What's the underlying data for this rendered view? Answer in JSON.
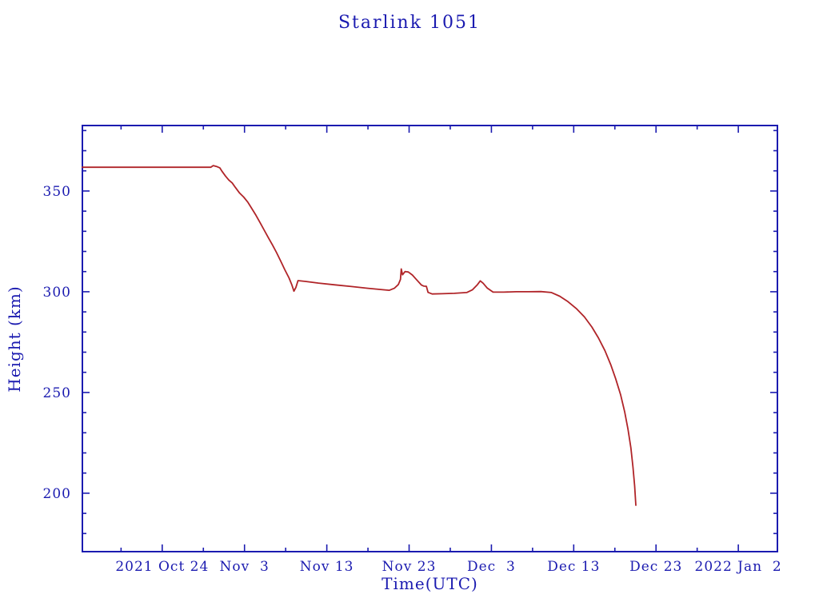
{
  "chart_data": {
    "type": "line",
    "title": "Starlink 1051",
    "xlabel": "Time(UTC)",
    "ylabel": "Height (km)",
    "x_unit": "days since 2021 Oct 24",
    "xlim": [
      -9.7,
      74.75
    ],
    "ylim": [
      171,
      382.5
    ],
    "grid": false,
    "legend": "none",
    "background_color": "#ffffff",
    "axis_color": "#1b1bb0",
    "line_color": "#b02428",
    "x_major_ticks": [
      {
        "day": 0,
        "label": "2021 Oct 24"
      },
      {
        "day": 10,
        "label": "Nov  3"
      },
      {
        "day": 20,
        "label": "Nov 13"
      },
      {
        "day": 30,
        "label": "Nov 23"
      },
      {
        "day": 40,
        "label": "Dec  3"
      },
      {
        "day": 50,
        "label": "Dec 13"
      },
      {
        "day": 60,
        "label": "Dec 23"
      },
      {
        "day": 70,
        "label": "2022 Jan  2"
      }
    ],
    "x_minor_tick_days": [
      -5,
      5,
      15,
      25,
      35,
      45,
      55,
      65
    ],
    "y_major_ticks": [
      {
        "value": 200,
        "label": "200"
      },
      {
        "value": 250,
        "label": "250"
      },
      {
        "value": 300,
        "label": "300"
      },
      {
        "value": 350,
        "label": "350"
      }
    ],
    "y_minor_ticks": [
      180,
      190,
      210,
      220,
      230,
      240,
      260,
      270,
      280,
      290,
      310,
      320,
      330,
      340,
      360,
      370,
      380
    ],
    "series": [
      {
        "name": "Starlink 1051 height",
        "points": [
          [
            -9.7,
            361.8
          ],
          [
            -6,
            361.8
          ],
          [
            -2,
            361.8
          ],
          [
            2,
            361.8
          ],
          [
            5.9,
            361.8
          ],
          [
            6.2,
            362.6
          ],
          [
            6.6,
            362.2
          ],
          [
            7.0,
            361.5
          ],
          [
            7.3,
            359.6
          ],
          [
            7.7,
            357.4
          ],
          [
            8.1,
            355.4
          ],
          [
            8.5,
            354.0
          ],
          [
            8.9,
            351.7
          ],
          [
            9.4,
            349.0
          ],
          [
            9.9,
            347.0
          ],
          [
            10.4,
            344.5
          ],
          [
            10.9,
            341.2
          ],
          [
            11.4,
            337.9
          ],
          [
            11.9,
            334.2
          ],
          [
            12.4,
            330.5
          ],
          [
            12.9,
            326.8
          ],
          [
            13.4,
            323.2
          ],
          [
            13.9,
            319.4
          ],
          [
            14.4,
            315.2
          ],
          [
            14.9,
            310.9
          ],
          [
            15.4,
            306.9
          ],
          [
            15.75,
            303.4
          ],
          [
            16.0,
            300.3
          ],
          [
            16.25,
            302.2
          ],
          [
            16.5,
            305.5
          ],
          [
            17.5,
            305.1
          ],
          [
            19,
            304.3
          ],
          [
            21,
            303.4
          ],
          [
            23,
            302.6
          ],
          [
            25,
            301.7
          ],
          [
            26.8,
            301.0
          ],
          [
            27.6,
            300.7
          ],
          [
            28.2,
            301.7
          ],
          [
            28.7,
            303.6
          ],
          [
            28.95,
            306.1
          ],
          [
            29.05,
            311.3
          ],
          [
            29.2,
            308.4
          ],
          [
            29.5,
            310.0
          ],
          [
            29.9,
            309.8
          ],
          [
            30.4,
            308.3
          ],
          [
            30.9,
            306.0
          ],
          [
            31.5,
            303.3
          ],
          [
            31.8,
            302.8
          ],
          [
            32.1,
            302.7
          ],
          [
            32.3,
            299.7
          ],
          [
            32.8,
            298.9
          ],
          [
            34,
            299.0
          ],
          [
            35.5,
            299.2
          ],
          [
            37.0,
            299.6
          ],
          [
            37.7,
            301.0
          ],
          [
            38.3,
            303.5
          ],
          [
            38.65,
            305.4
          ],
          [
            39.0,
            304.2
          ],
          [
            39.5,
            301.8
          ],
          [
            40.2,
            299.8
          ],
          [
            41.5,
            299.8
          ],
          [
            43,
            300.0
          ],
          [
            44.5,
            300.0
          ],
          [
            46,
            300.1
          ],
          [
            47.3,
            299.6
          ],
          [
            48.3,
            297.8
          ],
          [
            49.3,
            295.1
          ],
          [
            50.3,
            291.7
          ],
          [
            51.3,
            287.5
          ],
          [
            52.2,
            282.5
          ],
          [
            53.0,
            277.1
          ],
          [
            53.8,
            270.7
          ],
          [
            54.5,
            263.8
          ],
          [
            55.1,
            256.8
          ],
          [
            55.7,
            248.8
          ],
          [
            56.2,
            240.3
          ],
          [
            56.6,
            231.7
          ],
          [
            56.95,
            222.5
          ],
          [
            57.2,
            213.0
          ],
          [
            57.4,
            203.6
          ],
          [
            57.55,
            194.0
          ]
        ]
      }
    ]
  }
}
